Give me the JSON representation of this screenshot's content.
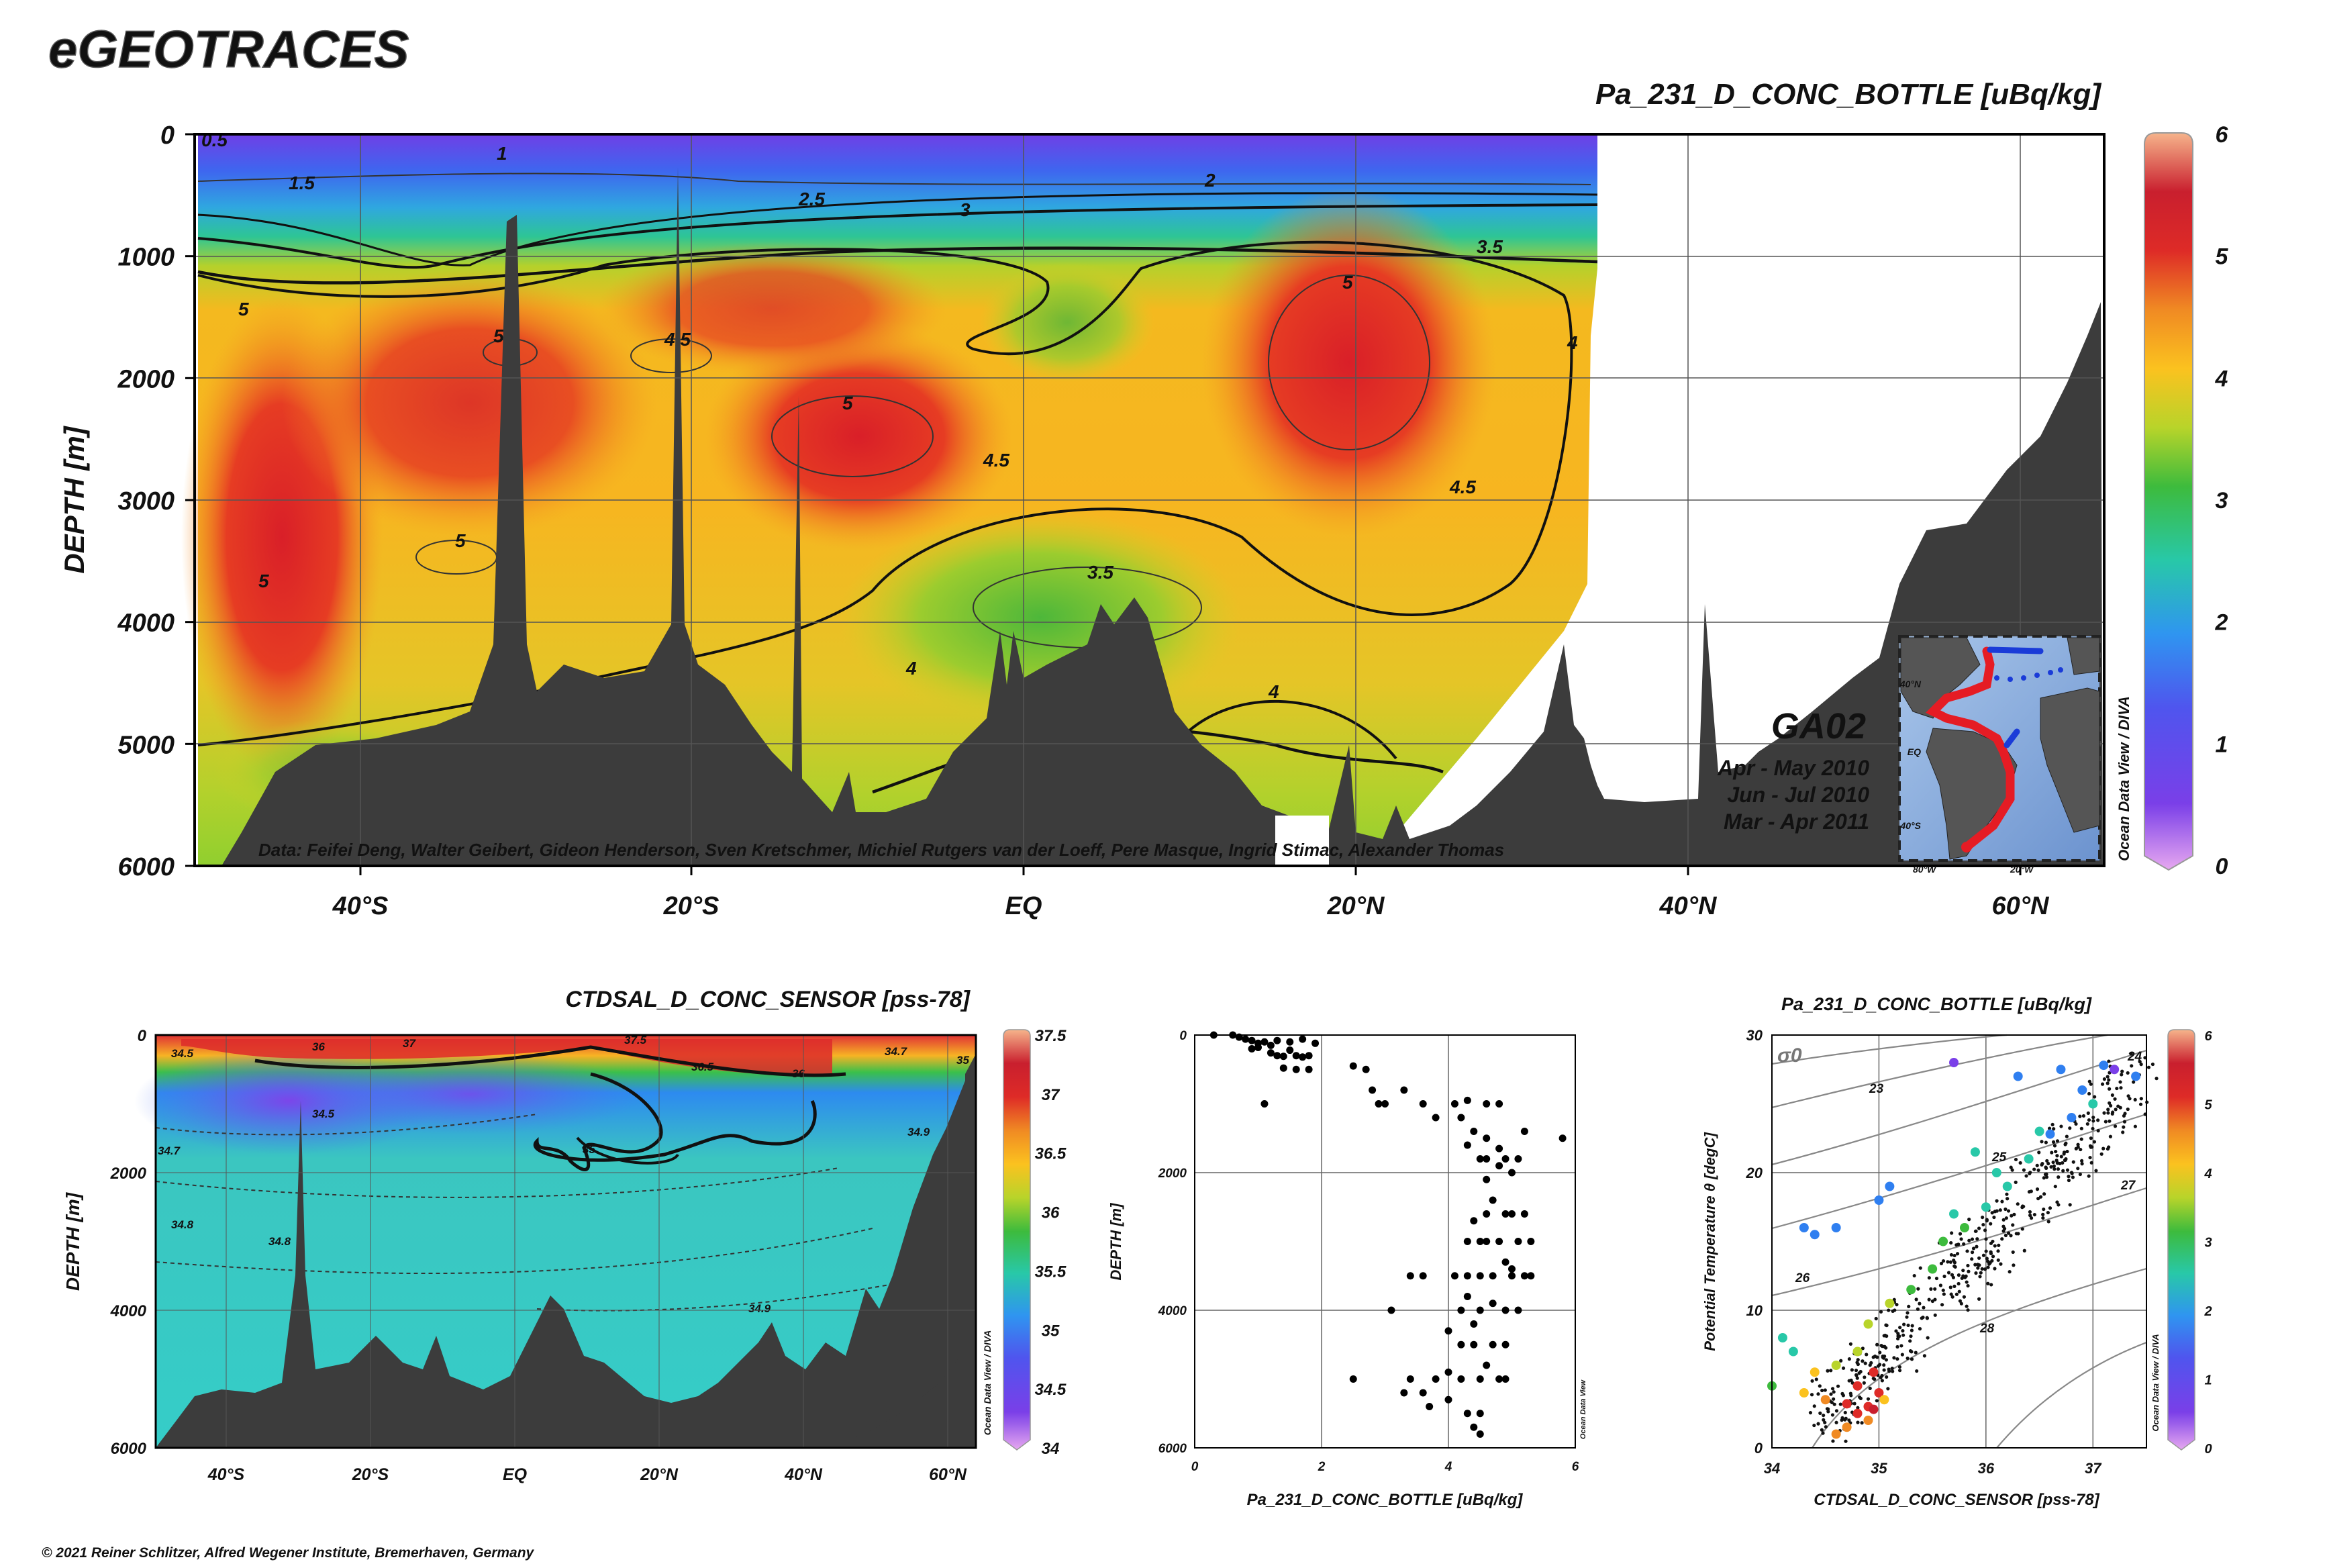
{
  "brand": "eGEOTRACES",
  "copyright": "© 2021 Reiner Schlitzer, Alfred Wegener Institute, Bremerhaven, Germany",
  "odv_credit": "Ocean Data View / DIVA",
  "odv_credit_short": "Ocean Data View",
  "main_section": {
    "title": "Pa_231_D_CONC_BOTTLE [uBq/kg]",
    "ylabel": "DEPTH [m]",
    "credits": "Data: Feifei Deng, Walter Geibert, Gideon Henderson, Sven Kretschmer, Michiel Rutgers van der Loeff, Pere Masque, Ingrid Stimac, Alexander Thomas",
    "cruise": "GA02",
    "periods": [
      "Apr - May 2010",
      "Jun - Jul 2010",
      "Mar - Apr 2011"
    ],
    "inset_lat_labels": [
      "40°N",
      "EQ",
      "40°S"
    ],
    "inset_lon_labels": [
      "80°W",
      "20°W"
    ]
  },
  "colors": {
    "colormap": [
      "#e7a8f0",
      "#7a3fe8",
      "#2f7ff0",
      "#28c8a8",
      "#3dbb3d",
      "#b8d42a",
      "#fbc21f",
      "#f08a23",
      "#de2b27",
      "#c91f2e",
      "#f6b48b"
    ],
    "bathymetry": "#3c3c3c",
    "contour": "#111111"
  },
  "chart_data": [
    {
      "type": "heatmap",
      "name_note": "main section",
      "title": "Pa_231_D_CONC_BOTTLE [uBq/kg]",
      "ylabel": "DEPTH [m]",
      "xlabel": "",
      "x_ticks": [
        "40°S",
        "20°S",
        "EQ",
        "20°N",
        "40°N",
        "60°N"
      ],
      "y_ticks": [
        "0",
        "1000",
        "2000",
        "3000",
        "4000",
        "5000",
        "6000"
      ],
      "ylim": [
        6000,
        0
      ],
      "colorbar": {
        "ticks": [
          "0",
          "1",
          "2",
          "3",
          "4",
          "5",
          "6"
        ],
        "range": [
          0,
          6
        ]
      },
      "contour_labels": [
        "0.5",
        "1",
        "1.5",
        "2",
        "2.5",
        "3",
        "3.5",
        "4",
        "4.5",
        "5"
      ],
      "grid": true
    },
    {
      "type": "heatmap",
      "name_note": "salinity section",
      "title": "CTDSAL_D_CONC_SENSOR [pss-78]",
      "ylabel": "DEPTH [m]",
      "xlabel": "",
      "x_ticks": [
        "40°S",
        "20°S",
        "EQ",
        "20°N",
        "40°N",
        "60°N"
      ],
      "y_ticks": [
        "0",
        "2000",
        "4000",
        "6000"
      ],
      "ylim": [
        6000,
        0
      ],
      "colorbar": {
        "ticks": [
          "34",
          "34.5",
          "35",
          "35.5",
          "36",
          "36.5",
          "37",
          "37.5"
        ],
        "range": [
          34,
          37.5
        ]
      },
      "contour_labels": [
        "34.5",
        "34.7",
        "34.8",
        "34.9",
        "35",
        "36",
        "36.5",
        "37",
        "37.5"
      ],
      "grid": true
    },
    {
      "type": "scatter",
      "name_note": "profile",
      "title": "",
      "xlabel": "Pa_231_D_CONC_BOTTLE [uBq/kg]",
      "ylabel": "DEPTH [m]",
      "xlim": [
        0,
        6
      ],
      "ylim": [
        6000,
        0
      ],
      "x_ticks": [
        "0",
        "2",
        "4",
        "6"
      ],
      "y_ticks": [
        "0",
        "2000",
        "4000",
        "6000"
      ],
      "grid": true,
      "points": [
        [
          0.3,
          0
        ],
        [
          0.6,
          0
        ],
        [
          0.7,
          30
        ],
        [
          0.8,
          60
        ],
        [
          0.9,
          80
        ],
        [
          1.0,
          120
        ],
        [
          1.1,
          100
        ],
        [
          1.2,
          150
        ],
        [
          1.3,
          80
        ],
        [
          1.5,
          100
        ],
        [
          1.7,
          60
        ],
        [
          1.9,
          120
        ],
        [
          0.9,
          200
        ],
        [
          1.0,
          180
        ],
        [
          1.2,
          260
        ],
        [
          1.5,
          220
        ],
        [
          1.3,
          300
        ],
        [
          1.4,
          310
        ],
        [
          1.6,
          300
        ],
        [
          1.7,
          320
        ],
        [
          1.8,
          300
        ],
        [
          1.4,
          480
        ],
        [
          1.6,
          500
        ],
        [
          1.8,
          500
        ],
        [
          2.5,
          450
        ],
        [
          2.7,
          500
        ],
        [
          1.1,
          1000
        ],
        [
          2.8,
          800
        ],
        [
          3.3,
          800
        ],
        [
          2.9,
          1000
        ],
        [
          3.0,
          1000
        ],
        [
          3.6,
          1000
        ],
        [
          4.1,
          1000
        ],
        [
          4.3,
          950
        ],
        [
          4.6,
          1000
        ],
        [
          4.8,
          1000
        ],
        [
          3.8,
          1200
        ],
        [
          4.2,
          1200
        ],
        [
          4.4,
          1400
        ],
        [
          4.6,
          1500
        ],
        [
          5.2,
          1400
        ],
        [
          5.8,
          1500
        ],
        [
          4.3,
          1600
        ],
        [
          4.8,
          1650
        ],
        [
          4.5,
          1800
        ],
        [
          4.6,
          1800
        ],
        [
          5.1,
          1800
        ],
        [
          4.8,
          1900
        ],
        [
          4.9,
          1800
        ],
        [
          4.6,
          2100
        ],
        [
          5.0,
          2000
        ],
        [
          4.7,
          2400
        ],
        [
          4.6,
          2600
        ],
        [
          4.9,
          2600
        ],
        [
          5.0,
          2600
        ],
        [
          5.2,
          2600
        ],
        [
          4.4,
          2700
        ],
        [
          4.5,
          3000
        ],
        [
          4.3,
          3000
        ],
        [
          4.6,
          3000
        ],
        [
          4.8,
          3000
        ],
        [
          5.1,
          3000
        ],
        [
          5.3,
          3000
        ],
        [
          4.9,
          3300
        ],
        [
          5.0,
          3400
        ],
        [
          3.4,
          3500
        ],
        [
          3.6,
          3500
        ],
        [
          4.1,
          3500
        ],
        [
          4.3,
          3500
        ],
        [
          4.5,
          3500
        ],
        [
          4.7,
          3500
        ],
        [
          5.0,
          3500
        ],
        [
          5.2,
          3500
        ],
        [
          5.3,
          3500
        ],
        [
          4.3,
          3800
        ],
        [
          4.7,
          3900
        ],
        [
          3.1,
          4000
        ],
        [
          4.2,
          4000
        ],
        [
          4.5,
          4000
        ],
        [
          4.9,
          4000
        ],
        [
          5.1,
          4000
        ],
        [
          4.4,
          4200
        ],
        [
          4.0,
          4300
        ],
        [
          4.2,
          4500
        ],
        [
          4.4,
          4500
        ],
        [
          4.7,
          4500
        ],
        [
          4.9,
          4500
        ],
        [
          4.6,
          4800
        ],
        [
          2.5,
          5000
        ],
        [
          3.4,
          5000
        ],
        [
          3.8,
          5000
        ],
        [
          4.0,
          4900
        ],
        [
          4.2,
          5000
        ],
        [
          4.5,
          5000
        ],
        [
          4.8,
          5000
        ],
        [
          4.9,
          5000
        ],
        [
          3.3,
          5200
        ],
        [
          3.6,
          5200
        ],
        [
          4.0,
          5300
        ],
        [
          4.3,
          5500
        ],
        [
          4.5,
          5500
        ],
        [
          3.7,
          5400
        ],
        [
          4.4,
          5700
        ],
        [
          4.5,
          5800
        ]
      ]
    },
    {
      "type": "scatter",
      "name_note": "TS diagram",
      "title": "Pa_231_D_CONC_BOTTLE [uBq/kg]",
      "xlabel": "CTDSAL_D_CONC_SENSOR [pss-78]",
      "ylabel": "Potential Temperature θ [degC]",
      "xlim": [
        34,
        37.5
      ],
      "ylim": [
        0,
        30
      ],
      "x_ticks": [
        "34",
        "35",
        "36",
        "37"
      ],
      "y_ticks": [
        "0",
        "10",
        "20",
        "30"
      ],
      "isopycnal_labels": [
        "σ0",
        "23",
        "24",
        "25",
        "26",
        "27",
        "28"
      ],
      "colorbar": {
        "ticks": [
          "0",
          "1",
          "2",
          "3",
          "4",
          "5",
          "6"
        ],
        "range": [
          0,
          6
        ]
      },
      "grid": true,
      "colored_points": [
        [
          34.3,
          16,
          1.2
        ],
        [
          34.6,
          16,
          1.0
        ],
        [
          34.4,
          15.5,
          1.1
        ],
        [
          35.0,
          18,
          0.9
        ],
        [
          35.1,
          19,
          1.1
        ],
        [
          35.7,
          28,
          0.8
        ],
        [
          36.3,
          27,
          0.9
        ],
        [
          36.7,
          27.5,
          0.9
        ],
        [
          37.1,
          27.8,
          1.0
        ],
        [
          37.0,
          25,
          1.5
        ],
        [
          36.8,
          24,
          1.4
        ],
        [
          36.5,
          23,
          1.5
        ],
        [
          36.4,
          21,
          1.8
        ],
        [
          36.2,
          19,
          1.8
        ],
        [
          36.0,
          17.5,
          2.0
        ],
        [
          35.8,
          16,
          2.1
        ],
        [
          35.6,
          15,
          2.2
        ],
        [
          35.5,
          13,
          2.4
        ],
        [
          35.3,
          11.5,
          2.6
        ],
        [
          35.1,
          10.5,
          2.8
        ],
        [
          34.9,
          9,
          3.0
        ],
        [
          34.8,
          7,
          3.2
        ],
        [
          34.6,
          6,
          2.9
        ],
        [
          34.4,
          5.5,
          3.4
        ],
        [
          34.3,
          4,
          3.5
        ],
        [
          34.5,
          3.5,
          4.0
        ],
        [
          34.7,
          3.2,
          4.5
        ],
        [
          34.9,
          3.0,
          4.8
        ],
        [
          34.8,
          2.5,
          5.0
        ],
        [
          34.9,
          2.0,
          4.4
        ],
        [
          34.7,
          1.5,
          4.2
        ],
        [
          34.6,
          1,
          3.9
        ],
        [
          34.8,
          4.5,
          4.6
        ],
        [
          34.95,
          5.5,
          4.5
        ],
        [
          35.0,
          4.0,
          4.9
        ],
        [
          34.95,
          2.8,
          5.2
        ],
        [
          35.05,
          3.5,
          3.8
        ],
        [
          34.1,
          8,
          1.6
        ],
        [
          34.2,
          7,
          1.9
        ],
        [
          34.0,
          4.5,
          2.2
        ],
        [
          35.9,
          21.5,
          1.6
        ],
        [
          36.6,
          22.8,
          1.4
        ],
        [
          36.9,
          26,
          1.2
        ],
        [
          37.2,
          27.5,
          0.7
        ],
        [
          37.4,
          27.0,
          0.9
        ],
        [
          36.1,
          20,
          1.9
        ],
        [
          35.7,
          17,
          2.0
        ]
      ]
    }
  ]
}
